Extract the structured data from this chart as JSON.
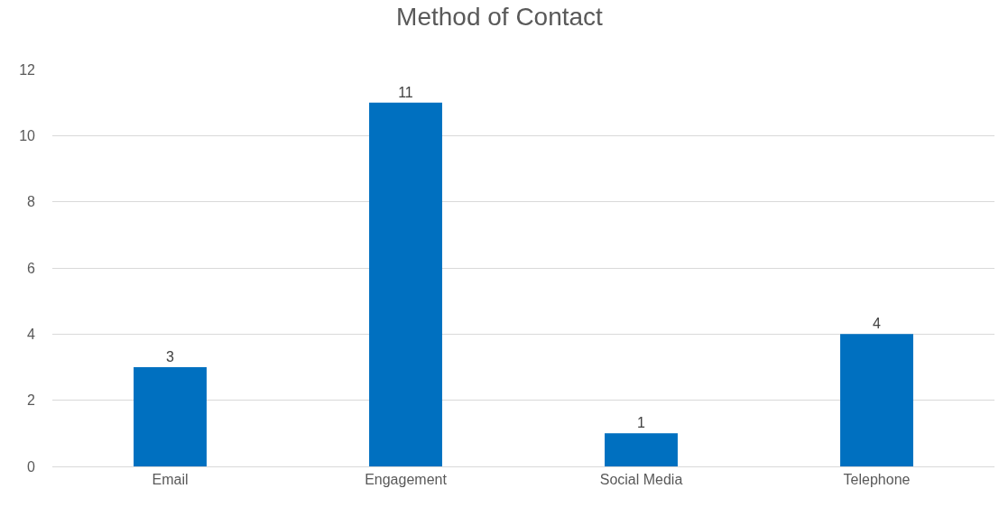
{
  "chart_data": {
    "type": "bar",
    "title": "Method of Contact",
    "categories": [
      "Email",
      "Engagement",
      "Social Media",
      "Telephone"
    ],
    "values": [
      3,
      11,
      1,
      4
    ],
    "color": "#0070c0",
    "ylim": [
      0,
      12
    ],
    "yticks": [
      0,
      2,
      4,
      6,
      8,
      10,
      12
    ],
    "grid": "y",
    "data_labels": true
  }
}
